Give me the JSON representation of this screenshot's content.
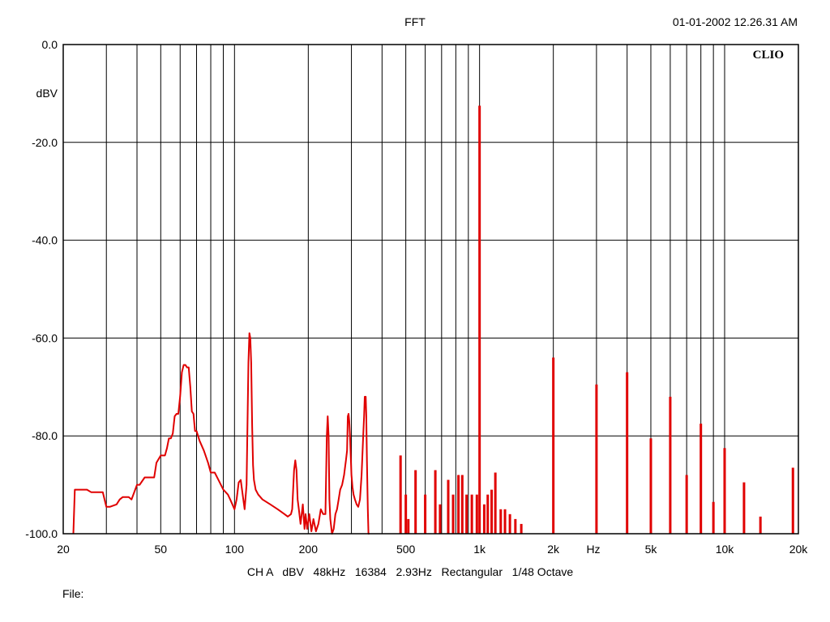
{
  "chart_data": {
    "type": "line",
    "title": "FFT",
    "timestamp": "01-01-2002 12.26.31 AM",
    "brand": "CLIO",
    "ylabel": "dBV",
    "xlabel": "Hz",
    "x_scale": "log",
    "xlim": [
      20,
      20000
    ],
    "ylim": [
      -100,
      0
    ],
    "grid": true,
    "y_ticks": [
      {
        "v": 0,
        "label": "0.0"
      },
      {
        "v": -20,
        "label": "-20.0"
      },
      {
        "v": -40,
        "label": "-40.0"
      },
      {
        "v": -60,
        "label": "-60.0"
      },
      {
        "v": -80,
        "label": "-80.0"
      },
      {
        "v": -100,
        "label": "-100.0"
      }
    ],
    "x_ticks": [
      {
        "v": 20,
        "label": "20"
      },
      {
        "v": 50,
        "label": "50"
      },
      {
        "v": 100,
        "label": "100"
      },
      {
        "v": 200,
        "label": "200"
      },
      {
        "v": 500,
        "label": "500"
      },
      {
        "v": 1000,
        "label": "1k"
      },
      {
        "v": 2000,
        "label": "2k"
      },
      {
        "v": 5000,
        "label": "5k"
      },
      {
        "v": 10000,
        "label": "10k"
      },
      {
        "v": 20000,
        "label": "20k"
      }
    ],
    "x_gridlines": [
      30,
      40,
      50,
      60,
      70,
      80,
      90,
      100,
      200,
      300,
      400,
      500,
      600,
      700,
      800,
      900,
      1000,
      2000,
      3000,
      4000,
      5000,
      6000,
      7000,
      8000,
      9000,
      10000
    ],
    "series": [
      {
        "color": "#e00000",
        "x": [
          22,
          22.3,
          25,
          26,
          27,
          28,
          29,
          30,
          31,
          33,
          34,
          35,
          37,
          38,
          40,
          41,
          43,
          44,
          47,
          48,
          50,
          52,
          53,
          54,
          55,
          56,
          57,
          58,
          59,
          60,
          61,
          62,
          63,
          64,
          65,
          66,
          67,
          68,
          69,
          70,
          72,
          75,
          78,
          80,
          83,
          86,
          88,
          90,
          92,
          94,
          96,
          98,
          100,
          102,
          104,
          106,
          108,
          110,
          112,
          114,
          115,
          116,
          117,
          118,
          119,
          120,
          122,
          125,
          130,
          140,
          150,
          160,
          165,
          170,
          172,
          175,
          177,
          179,
          181,
          183,
          186,
          190,
          193,
          195,
          198,
          202,
          206,
          210,
          215,
          220,
          225,
          230,
          235,
          238,
          240,
          242,
          244,
          246,
          250,
          254,
          258,
          262,
          266,
          270,
          275,
          280,
          285,
          288,
          290,
          292,
          294,
          296,
          298,
          300,
          303,
          306,
          310,
          315,
          320,
          325,
          330,
          335,
          338,
          340,
          343,
          345,
          347,
          350,
          352,
          355
        ],
        "y": [
          -100,
          -91,
          -91,
          -91.5,
          -91.5,
          -91.5,
          -91.5,
          -94.5,
          -94.5,
          -94,
          -93,
          -92.5,
          -92.5,
          -93,
          -90,
          -90,
          -88.5,
          -88.5,
          -88.5,
          -85.5,
          -84,
          -84,
          -82.5,
          -80.5,
          -80.5,
          -79.5,
          -76,
          -75.5,
          -75.5,
          -72,
          -67,
          -65.5,
          -65.5,
          -66,
          -66,
          -70,
          -75,
          -75.5,
          -79,
          -79,
          -81,
          -83,
          -85.5,
          -87.5,
          -87.5,
          -89,
          -90,
          -91,
          -91.5,
          -92,
          -93,
          -94,
          -95,
          -93,
          -89.5,
          -89,
          -92,
          -95,
          -90,
          -65,
          -59,
          -60,
          -65,
          -78,
          -86,
          -89,
          -91,
          -92,
          -93,
          -94,
          -95,
          -96,
          -96.5,
          -96,
          -95,
          -87,
          -85,
          -87,
          -93,
          -95,
          -98,
          -94,
          -99,
          -96,
          -99,
          -96,
          -99.5,
          -97,
          -99.5,
          -98,
          -95,
          -96,
          -96,
          -80,
          -76,
          -80,
          -93,
          -97,
          -100,
          -99,
          -96,
          -95,
          -93,
          -91,
          -90,
          -88,
          -85,
          -83,
          -76,
          -75.5,
          -77,
          -80,
          -84,
          -88,
          -90.5,
          -92,
          -93,
          -94,
          -94.5,
          -93,
          -88,
          -80,
          -76,
          -72,
          -72,
          -76,
          -85,
          -95,
          -100,
          -100
        ]
      }
    ],
    "spikes": [
      {
        "x": 476,
        "y": -84
      },
      {
        "x": 500,
        "y": -92
      },
      {
        "x": 512,
        "y": -97
      },
      {
        "x": 548,
        "y": -87
      },
      {
        "x": 600,
        "y": -92
      },
      {
        "x": 660,
        "y": -87
      },
      {
        "x": 690,
        "y": -94
      },
      {
        "x": 745,
        "y": -89
      },
      {
        "x": 780,
        "y": -92
      },
      {
        "x": 820,
        "y": -88
      },
      {
        "x": 850,
        "y": -88
      },
      {
        "x": 885,
        "y": -92
      },
      {
        "x": 930,
        "y": -92
      },
      {
        "x": 975,
        "y": -92
      },
      {
        "x": 1000,
        "y": -12.5
      },
      {
        "x": 1045,
        "y": -94
      },
      {
        "x": 1080,
        "y": -92
      },
      {
        "x": 1120,
        "y": -91
      },
      {
        "x": 1160,
        "y": -87.5
      },
      {
        "x": 1220,
        "y": -95
      },
      {
        "x": 1270,
        "y": -95
      },
      {
        "x": 1330,
        "y": -96
      },
      {
        "x": 1400,
        "y": -97
      },
      {
        "x": 1480,
        "y": -98
      },
      {
        "x": 2000,
        "y": -64
      },
      {
        "x": 3000,
        "y": -69.5
      },
      {
        "x": 4000,
        "y": -67
      },
      {
        "x": 5000,
        "y": -80.5
      },
      {
        "x": 6000,
        "y": -72
      },
      {
        "x": 7000,
        "y": -88
      },
      {
        "x": 8000,
        "y": -77.5
      },
      {
        "x": 9000,
        "y": -93.5
      },
      {
        "x": 10000,
        "y": -82.5
      },
      {
        "x": 12000,
        "y": -89.5
      },
      {
        "x": 14000,
        "y": -96.5
      },
      {
        "x": 19000,
        "y": -86.5
      }
    ]
  },
  "footer": {
    "settings": "CH A   dBV   48kHz   16384   2.93Hz   Rectangular   1/48 Octave",
    "file_label": "File:"
  }
}
